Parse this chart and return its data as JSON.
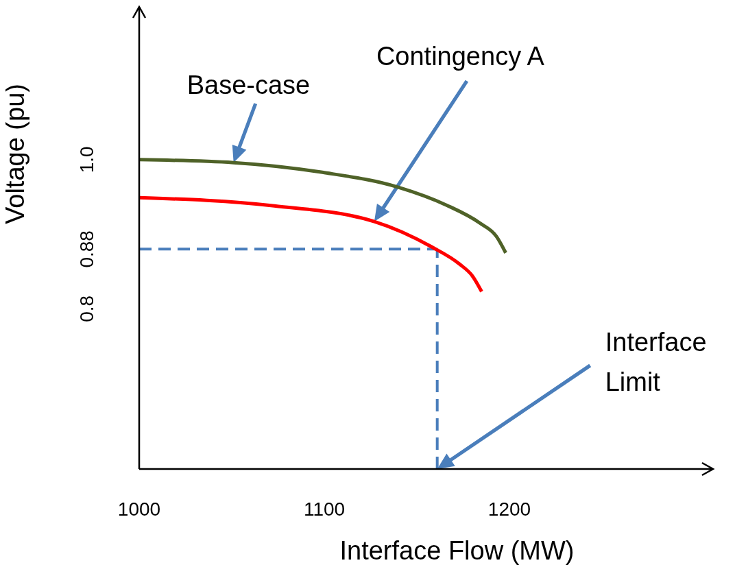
{
  "chart_data": {
    "type": "line",
    "xlabel": "Interface Flow (MW)",
    "ylabel": "Voltage (pu)",
    "xlim": [
      1000,
      1310
    ],
    "ylim": [
      0.585,
      1.205
    ],
    "xticks": [
      1000,
      1100,
      1200
    ],
    "yticks": [
      0.8,
      0.88,
      {
        "value": 1.0,
        "label": "1.0"
      }
    ],
    "marker": "none",
    "series": [
      {
        "color": "#4f6228",
        "x": [
          1000,
          1051,
          1099,
          1140,
          1166,
          1184,
          1193,
          1198
        ],
        "values": [
          1.0,
          0.996,
          0.983,
          0.963,
          0.939,
          0.915,
          0.897,
          0.875
        ]
      },
      {
        "color": "#ff0000",
        "x": [
          1000,
          1073,
          1127,
          1158,
          1173,
          1180,
          1185
        ],
        "values": [
          0.949,
          0.938,
          0.917,
          0.883,
          0.86,
          0.844,
          0.823
        ]
      }
    ],
    "ref_lines": [
      {
        "axis": "y",
        "value": 0.88,
        "color": "#4a7ebb",
        "line_style": "dashed"
      },
      {
        "axis": "x",
        "value": 1161,
        "color": "#4a7ebb",
        "line_style": "dashed"
      }
    ],
    "annotations": [
      {
        "text": "Base-case",
        "x": 1051,
        "y": 0.996
      },
      "Contingency A",
      "Interface Limit"
    ]
  }
}
